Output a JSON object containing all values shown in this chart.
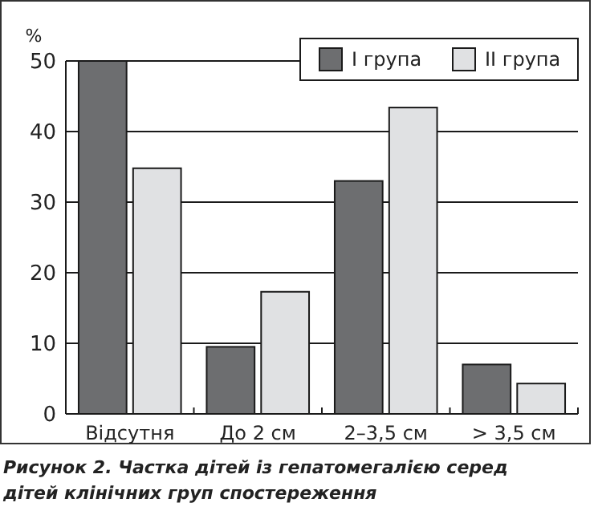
{
  "chart_data": {
    "type": "bar",
    "ylabel": "%",
    "categories": [
      "Відсутня",
      "До 2 см",
      "2–3,5 см",
      "> 3,5 см"
    ],
    "series": [
      {
        "name": "I група",
        "color": "#6d6e70",
        "values": [
          50,
          9.5,
          33,
          7
        ]
      },
      {
        "name": "II група",
        "color": "#e0e1e3",
        "values": [
          34.8,
          17.3,
          43.4,
          4.3
        ]
      }
    ],
    "ylim": [
      0,
      50
    ],
    "yticks": [
      0,
      10,
      20,
      30,
      40,
      50
    ],
    "grid": "y",
    "legend": "top right",
    "annotations": [
      "Рисунок 2. Частка дітей із гепатомегалією серед дітей клінічних груп спостереження"
    ]
  }
}
